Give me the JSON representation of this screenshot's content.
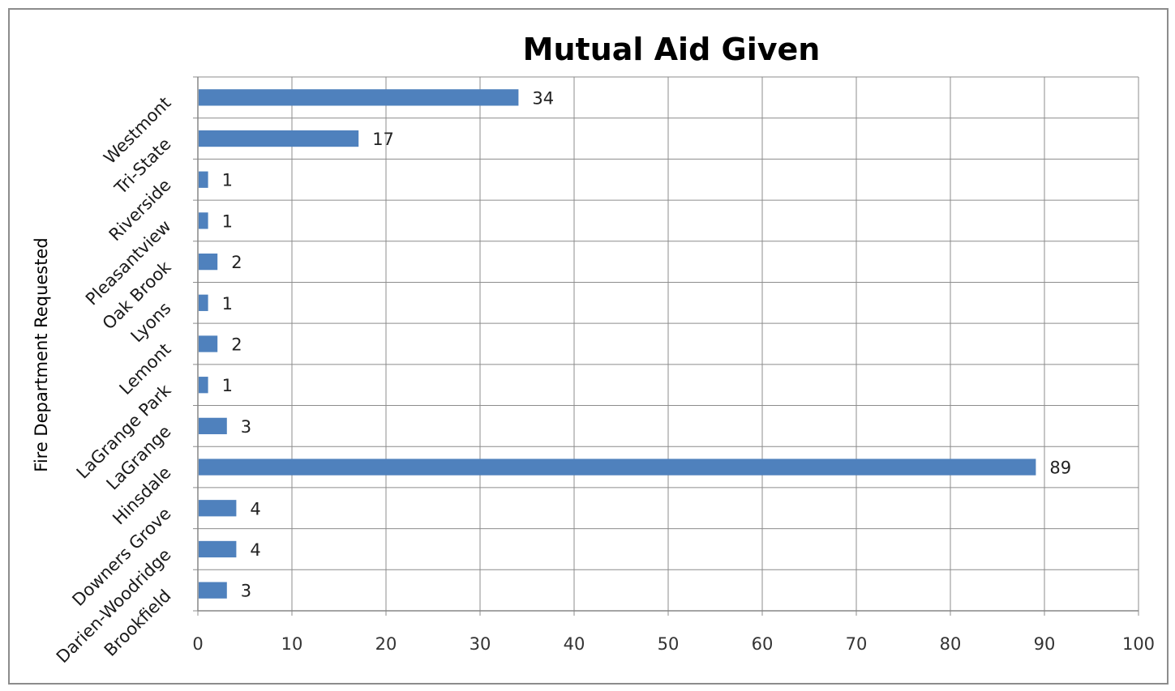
{
  "chart_data": {
    "type": "bar",
    "orientation": "horizontal",
    "title": "Mutual Aid Given",
    "xlabel": "",
    "ylabel": "Fire Department Requested",
    "categories": [
      "Westmont",
      "Tri-State",
      "Riverside",
      "Pleasantview",
      "Oak Brook",
      "Lyons",
      "Lemont",
      "LaGrange Park",
      "LaGrange",
      "Hinsdale",
      "Downers Grove",
      "Darien-Woodridge",
      "Brookfield"
    ],
    "values": [
      34,
      17,
      1,
      1,
      2,
      1,
      2,
      1,
      3,
      89,
      4,
      4,
      3
    ],
    "data_labels": [
      "34",
      "17",
      "1",
      "1",
      "2",
      "1",
      "2",
      "1",
      "3",
      "89",
      "4",
      "4",
      "3"
    ],
    "xlim": [
      0,
      100
    ],
    "xticks": [
      "0",
      "10",
      "20",
      "30",
      "40",
      "50",
      "60",
      "70",
      "80",
      "90",
      "100"
    ],
    "grid": true,
    "legend": "none",
    "bar_color": "#4f81bd"
  }
}
